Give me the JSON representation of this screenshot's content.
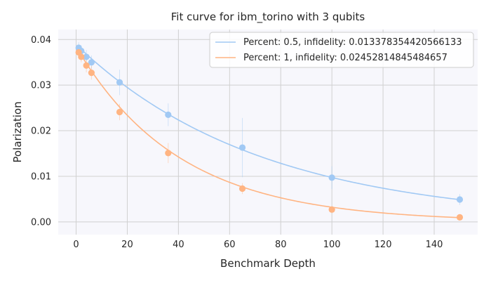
{
  "chart_data": {
    "type": "scatter",
    "title": "Fit curve for ibm_torino with 3 qubits",
    "xlabel": "Benchmark Depth",
    "ylabel": "Polarization",
    "xlim": [
      -7,
      157
    ],
    "ylim": [
      -0.0028,
      0.0422
    ],
    "xticks": [
      0,
      20,
      40,
      60,
      80,
      100,
      120,
      140
    ],
    "yticks": [
      0.0,
      0.01,
      0.02,
      0.03,
      0.04
    ],
    "ytick_labels": [
      "0.00",
      "0.01",
      "0.02",
      "0.03",
      "0.04"
    ],
    "grid": true,
    "legend_position": "top-right",
    "series": [
      {
        "name": "Percent: 0.5, infidelity: 0.013378354420566133",
        "color": "#a1c9f4",
        "x": [
          1,
          2,
          4,
          6,
          17,
          36,
          65,
          100,
          150
        ],
        "y": [
          0.0382,
          0.0375,
          0.0362,
          0.035,
          0.0306,
          0.0235,
          0.0163,
          0.0097,
          0.0049
        ],
        "err": [
          0.0012,
          0.0012,
          0.0015,
          0.0015,
          0.0028,
          0.0025,
          0.0065,
          0.0025,
          0.0012
        ],
        "fit": {
          "A": 0.0389,
          "k": 0.01385
        }
      },
      {
        "name": "Percent: 1, infidelity: 0.02452814845484657",
        "color": "#ffb482",
        "x": [
          1,
          2,
          4,
          6,
          17,
          36,
          65,
          100,
          150
        ],
        "y": [
          0.0372,
          0.0362,
          0.0343,
          0.0327,
          0.0241,
          0.0151,
          0.0073,
          0.0027,
          0.001
        ],
        "err": [
          0.0012,
          0.0012,
          0.0015,
          0.0015,
          0.0018,
          0.0022,
          0.0012,
          0.0008,
          0.0006
        ],
        "fit": {
          "A": 0.0384,
          "k": 0.0248
        }
      }
    ]
  }
}
